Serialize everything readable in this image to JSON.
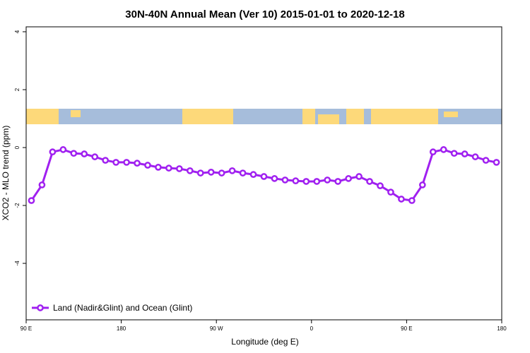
{
  "chart_data": {
    "type": "line",
    "title": "30N-40N Annual Mean (Ver 10)   2015-01-01 to 2020-12-18",
    "x_label": "Longitude (deg E)",
    "y_label": "XCO2 - MLO trend (ppm)",
    "x": [
      95,
      105,
      115,
      125,
      135,
      145,
      155,
      165,
      175,
      185,
      195,
      205,
      215,
      225,
      235,
      245,
      255,
      265,
      275,
      285,
      295,
      305,
      315,
      325,
      335,
      345,
      355,
      365,
      375,
      385,
      395,
      405,
      415,
      425,
      435,
      445,
      455,
      465,
      475,
      485,
      495,
      505,
      515,
      525,
      535
    ],
    "series": [
      {
        "name": "Land (Nadir&Glint) and Ocean (Glint)",
        "color": "#a020f0",
        "values": [
          -1.83,
          -1.29,
          -0.15,
          -0.07,
          -0.2,
          -0.22,
          -0.32,
          -0.44,
          -0.51,
          -0.51,
          -0.54,
          -0.61,
          -0.68,
          -0.71,
          -0.73,
          -0.8,
          -0.88,
          -0.85,
          -0.88,
          -0.8,
          -0.88,
          -0.93,
          -1.0,
          -1.07,
          -1.12,
          -1.15,
          -1.17,
          -1.17,
          -1.12,
          -1.17,
          -1.07,
          -1.0,
          -1.17,
          -1.32,
          -1.54,
          -1.78,
          -1.83,
          -1.29,
          -0.15,
          -0.07,
          -0.2,
          -0.22,
          -0.32,
          -0.44,
          -0.51
        ]
      }
    ],
    "xlim": [
      90,
      540
    ],
    "xticks": [
      {
        "value": 90,
        "label": "90 E"
      },
      {
        "value": 180,
        "label": "180"
      },
      {
        "value": 270,
        "label": "90 W"
      },
      {
        "value": 360,
        "label": "0"
      },
      {
        "value": 450,
        "label": "90 E"
      },
      {
        "value": 540,
        "label": "180"
      }
    ],
    "ylim": [
      -5.95,
      4.17
    ],
    "yticks": [
      -4,
      -2,
      0,
      2,
      4
    ],
    "legend": "bottomleft"
  }
}
